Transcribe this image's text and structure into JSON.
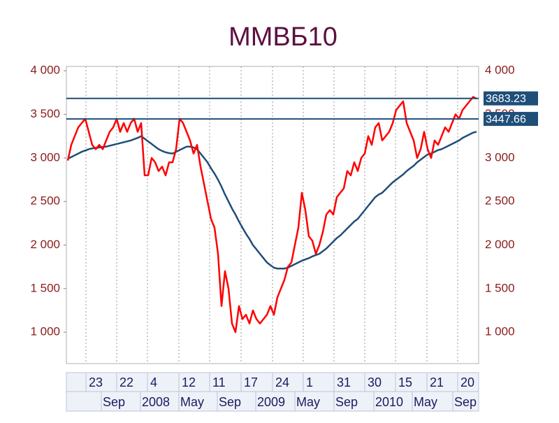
{
  "chart_data": {
    "type": "line",
    "title": "ММВБ10",
    "xlim": [
      0,
      117
    ],
    "ylim": [
      640,
      4050
    ],
    "yticks": [
      {
        "value": 1000,
        "label": "1 000"
      },
      {
        "value": 1500,
        "label": "1 500"
      },
      {
        "value": 2000,
        "label": "2 000"
      },
      {
        "value": 2500,
        "label": "2 500"
      },
      {
        "value": 3000,
        "label": "3 000"
      },
      {
        "value": 3500,
        "label": "3 500"
      },
      {
        "value": 4000,
        "label": "4 000"
      }
    ],
    "xticks": [
      {
        "value": 5.2,
        "label": "23"
      },
      {
        "value": 14,
        "label": "22"
      },
      {
        "value": 22.8,
        "label": "4"
      },
      {
        "value": 31.8,
        "label": "12"
      },
      {
        "value": 40.6,
        "label": "11"
      },
      {
        "value": 49.6,
        "label": "17"
      },
      {
        "value": 58.6,
        "label": "24"
      },
      {
        "value": 67.4,
        "label": "1"
      },
      {
        "value": 76.2,
        "label": "31"
      },
      {
        "value": 85,
        "label": "30"
      },
      {
        "value": 93.8,
        "label": "15"
      },
      {
        "value": 102.8,
        "label": "21"
      },
      {
        "value": 111.6,
        "label": "20"
      }
    ],
    "xticks2": [
      {
        "value": 10,
        "label": "Sep"
      },
      {
        "value": 21.2,
        "label": "2008"
      },
      {
        "value": 32.2,
        "label": "May"
      },
      {
        "value": 43.2,
        "label": "Sep"
      },
      {
        "value": 54.2,
        "label": "2009"
      },
      {
        "value": 65.4,
        "label": "May"
      },
      {
        "value": 76.6,
        "label": "Sep"
      },
      {
        "value": 88,
        "label": "2010"
      },
      {
        "value": 99,
        "label": "May"
      },
      {
        "value": 110.6,
        "label": "Sep"
      }
    ],
    "hlines": [
      3683.23,
      3447.66
    ],
    "series": [
      {
        "color": "#ff0000",
        "values": [
          2970,
          3150,
          3250,
          3350,
          3400,
          3450,
          3300,
          3150,
          3100,
          3150,
          3100,
          3200,
          3300,
          3350,
          3450,
          3300,
          3400,
          3300,
          3400,
          3450,
          3300,
          3400,
          2800,
          2800,
          3000,
          2950,
          2850,
          2900,
          2800,
          2950,
          2950,
          3100,
          3450,
          3400,
          3300,
          3200,
          3050,
          3150,
          2900,
          2700,
          2500,
          2300,
          2200,
          1900,
          1300,
          1700,
          1500,
          1100,
          1000,
          1300,
          1150,
          1200,
          1100,
          1250,
          1150,
          1100,
          1150,
          1200,
          1300,
          1200,
          1400,
          1500,
          1600,
          1750,
          1800,
          2000,
          2200,
          2600,
          2400,
          2100,
          2050,
          1900,
          2000,
          2150,
          2350,
          2400,
          2350,
          2550,
          2600,
          2650,
          2850,
          2800,
          2950,
          2850,
          3000,
          3050,
          3250,
          3150,
          3350,
          3400,
          3200,
          3250,
          3300,
          3400,
          3550,
          3600,
          3650,
          3400,
          3300,
          3200,
          3000,
          3100,
          3300,
          3100,
          3000,
          3200,
          3150,
          3250,
          3350,
          3300,
          3400,
          3500,
          3450,
          3550,
          3600,
          3650,
          3700,
          3680
        ]
      },
      {
        "color": "#1f4e79",
        "values": [
          2990,
          3010,
          3030,
          3050,
          3070,
          3085,
          3100,
          3110,
          3115,
          3120,
          3125,
          3130,
          3140,
          3150,
          3160,
          3170,
          3180,
          3190,
          3200,
          3215,
          3230,
          3250,
          3220,
          3190,
          3160,
          3130,
          3100,
          3080,
          3065,
          3055,
          3050,
          3070,
          3090,
          3110,
          3130,
          3130,
          3120,
          3100,
          3050,
          3000,
          2950,
          2880,
          2820,
          2750,
          2670,
          2580,
          2500,
          2420,
          2350,
          2270,
          2200,
          2130,
          2070,
          2000,
          1950,
          1900,
          1850,
          1800,
          1770,
          1740,
          1730,
          1730,
          1730,
          1740,
          1760,
          1780,
          1800,
          1820,
          1835,
          1850,
          1870,
          1885,
          1900,
          1930,
          1960,
          2000,
          2040,
          2080,
          2110,
          2150,
          2190,
          2230,
          2270,
          2300,
          2350,
          2400,
          2450,
          2500,
          2550,
          2580,
          2600,
          2640,
          2680,
          2720,
          2750,
          2780,
          2810,
          2850,
          2880,
          2910,
          2950,
          2980,
          3010,
          3040,
          3050,
          3070,
          3090,
          3100,
          3120,
          3140,
          3160,
          3180,
          3200,
          3230,
          3250,
          3270,
          3290,
          3300
        ]
      }
    ]
  }
}
